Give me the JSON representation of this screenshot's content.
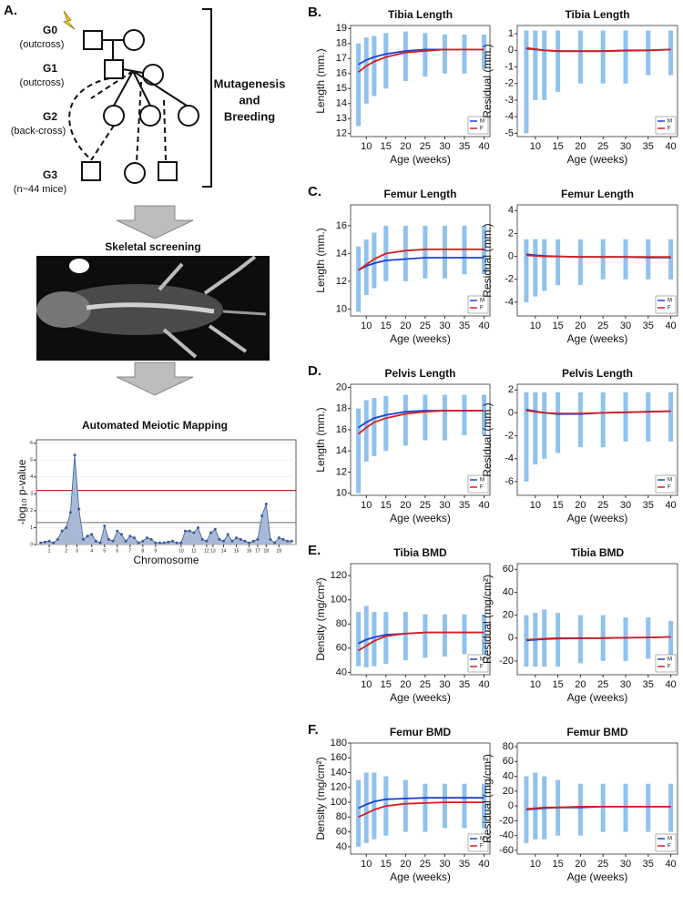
{
  "panel_a": {
    "label": "A.",
    "generations": [
      {
        "id": "G0",
        "note": "(outcross)"
      },
      {
        "id": "G1",
        "note": "(outcross)"
      },
      {
        "id": "G2",
        "note": "(back-cross)"
      },
      {
        "id": "G3",
        "note": "(n~44 mice)"
      }
    ],
    "bracket_label": [
      "Mutagenesis",
      "and",
      "Breeding"
    ],
    "step_1": "Skeletal screening"
  },
  "panel_labels": [
    "B.",
    "C.",
    "D.",
    "E.",
    "F."
  ],
  "chart_data": [
    {
      "type": "area",
      "title": "Automated Meiotic Mapping",
      "xlabel": "Chromosome",
      "ylabel": "-log₁₀ p-value",
      "color": "#3b5b9a",
      "fill": "#a9b8d4",
      "x": [
        1,
        2,
        3,
        4,
        5,
        6,
        7,
        8,
        9,
        10,
        11,
        12,
        13,
        14,
        15,
        16,
        17,
        18,
        19,
        20,
        21,
        22,
        23,
        24,
        25,
        26,
        27,
        28,
        29,
        30,
        31,
        32,
        33,
        34,
        35,
        36,
        37,
        38,
        39,
        40,
        41,
        42,
        43,
        44,
        45,
        46,
        47,
        48,
        49,
        50,
        51,
        52,
        53,
        54,
        55,
        56,
        57,
        58,
        59,
        60
      ],
      "values": [
        0.1,
        0.15,
        0.2,
        0.1,
        0.3,
        0.8,
        1.0,
        1.9,
        5.3,
        2.1,
        0.3,
        0.5,
        0.6,
        0.2,
        0.1,
        1.1,
        0.3,
        0.2,
        0.8,
        0.6,
        0.2,
        0.5,
        0.4,
        0.1,
        0.2,
        0.4,
        0.3,
        0.1,
        0.1,
        0.1,
        0.15,
        0.2,
        0.1,
        0.1,
        0.8,
        0.8,
        0.7,
        1.0,
        0.3,
        0.2,
        0.7,
        0.9,
        0.3,
        0.2,
        0.6,
        0.2,
        0.4,
        0.3,
        0.2,
        0.1,
        0.2,
        0.3,
        1.7,
        2.4,
        0.3,
        0.1,
        0.4,
        0.3,
        0.2,
        0.2
      ],
      "thresholds": [
        {
          "value": 3.2,
          "color": "#c62828"
        },
        {
          "value": 1.3,
          "color": "#888888"
        }
      ],
      "xlim": [
        0,
        61
      ],
      "ylim": [
        0,
        6.2
      ],
      "yticks": [
        0,
        1,
        2,
        3,
        4,
        5,
        6
      ],
      "xticks": [
        {
          "value": 3,
          "label": "1"
        },
        {
          "value": 7,
          "label": "2"
        },
        {
          "value": 9.5,
          "label": "3"
        },
        {
          "value": 13,
          "label": "4"
        },
        {
          "value": 16,
          "label": "5"
        },
        {
          "value": 19,
          "label": "6"
        },
        {
          "value": 22,
          "label": "7"
        },
        {
          "value": 25,
          "label": "8"
        },
        {
          "value": 28,
          "label": "9"
        },
        {
          "value": 34,
          "label": "10"
        },
        {
          "value": 37,
          "label": "11"
        },
        {
          "value": 40,
          "label": "12"
        },
        {
          "value": 41.5,
          "label": "13"
        },
        {
          "value": 44,
          "label": "14"
        },
        {
          "value": 47,
          "label": "15"
        },
        {
          "value": 50,
          "label": "16"
        },
        {
          "value": 52,
          "label": "17"
        },
        {
          "value": 54,
          "label": "18"
        },
        {
          "value": 57,
          "label": "19"
        }
      ]
    },
    {
      "type": "line",
      "title": "Tibia Length",
      "xlabel": "Age (weeks)",
      "ylabel": "Length (mm.)",
      "x": [
        8,
        10,
        12,
        15,
        20,
        25,
        30,
        35,
        40
      ],
      "series": [
        {
          "name": "M",
          "color": "#1f3fd6",
          "values": [
            16.6,
            16.9,
            17.1,
            17.3,
            17.5,
            17.6,
            17.6,
            17.6,
            17.6
          ]
        },
        {
          "name": "F",
          "color": "#d62020",
          "values": [
            16.1,
            16.5,
            16.8,
            17.1,
            17.4,
            17.5,
            17.6,
            17.6,
            17.6
          ]
        }
      ],
      "spread": {
        "color": "#6aaee8",
        "low": [
          12.5,
          14,
          14.5,
          15,
          15.5,
          15.8,
          16,
          16,
          16.3
        ],
        "high": [
          18,
          18.4,
          18.5,
          18.7,
          18.8,
          18.7,
          18.6,
          18.6,
          18.6
        ]
      },
      "xlim": [
        6,
        41.5
      ],
      "xticks": [
        10,
        15,
        20,
        25,
        30,
        35,
        40
      ],
      "ylim": [
        11.8,
        19.2
      ],
      "yticks": [
        12,
        13,
        14,
        15,
        16,
        17,
        18,
        19
      ],
      "legend": "lower right"
    },
    {
      "type": "line",
      "title": "Tibia Length",
      "xlabel": "Age (weeks)",
      "ylabel": "Residual (mm.)",
      "x": [
        8,
        10,
        12,
        15,
        20,
        25,
        30,
        35,
        40
      ],
      "series": [
        {
          "name": "M",
          "color": "#1f3fd6",
          "values": [
            0.1,
            0.05,
            0,
            -0.05,
            -0.05,
            -0.05,
            0,
            0,
            0.05
          ]
        },
        {
          "name": "F",
          "color": "#d62020",
          "values": [
            0.15,
            0.08,
            0,
            -0.05,
            -0.05,
            -0.05,
            -0.02,
            0,
            0.05
          ]
        }
      ],
      "spread": {
        "color": "#6aaee8",
        "low": [
          -5,
          -3,
          -3,
          -2.5,
          -2,
          -2,
          -2,
          -1.5,
          -1.5
        ],
        "high": [
          1.2,
          1.2,
          1.2,
          1.2,
          1.2,
          1.2,
          1.2,
          1.2,
          1.2
        ]
      },
      "xlim": [
        6,
        41.5
      ],
      "xticks": [
        10,
        15,
        20,
        25,
        30,
        35,
        40
      ],
      "ylim": [
        -5.2,
        1.5
      ],
      "yticks": [
        -5,
        -4,
        -3,
        -2,
        -1,
        0,
        1
      ],
      "legend": "lower right"
    },
    {
      "type": "line",
      "title": "Femur Length",
      "xlabel": "Age (weeks)",
      "ylabel": "Length (mm.)",
      "x": [
        8,
        10,
        12,
        15,
        20,
        25,
        30,
        35,
        40
      ],
      "series": [
        {
          "name": "M",
          "color": "#1f3fd6",
          "values": [
            12.8,
            13.1,
            13.3,
            13.5,
            13.6,
            13.7,
            13.7,
            13.7,
            13.7
          ]
        },
        {
          "name": "F",
          "color": "#d62020",
          "values": [
            12.8,
            13.2,
            13.6,
            14,
            14.2,
            14.3,
            14.3,
            14.3,
            14.3
          ]
        }
      ],
      "spread": {
        "color": "#6aaee8",
        "low": [
          9.8,
          11,
          11.5,
          12,
          12,
          12.2,
          12.2,
          12.5,
          12.5
        ],
        "high": [
          14.5,
          15,
          15.5,
          16,
          16,
          16,
          16,
          16,
          16
        ]
      },
      "xlim": [
        6,
        41.5
      ],
      "xticks": [
        10,
        15,
        20,
        25,
        30,
        35,
        40
      ],
      "ylim": [
        9.5,
        17.5
      ],
      "yticks": [
        10,
        12,
        14,
        16
      ],
      "legend": "lower right"
    },
    {
      "type": "line",
      "title": "Femur Length",
      "xlabel": "Age (weeks)",
      "ylabel": "Residual (mm.)",
      "x": [
        8,
        10,
        12,
        15,
        20,
        25,
        30,
        35,
        40
      ],
      "series": [
        {
          "name": "M",
          "color": "#1f3fd6",
          "values": [
            0.2,
            0.1,
            0.05,
            0,
            -0.05,
            -0.05,
            -0.05,
            -0.1,
            -0.1
          ]
        },
        {
          "name": "F",
          "color": "#d62020",
          "values": [
            0.1,
            0.05,
            0,
            0,
            -0.05,
            -0.05,
            -0.05,
            -0.05,
            -0.05
          ]
        }
      ],
      "spread": {
        "color": "#6aaee8",
        "low": [
          -4,
          -3.5,
          -3,
          -2.5,
          -2.5,
          -2,
          -2,
          -2,
          -2
        ],
        "high": [
          1.5,
          1.5,
          1.5,
          1.5,
          1.5,
          1.5,
          1.5,
          1.5,
          1.5
        ]
      },
      "xlim": [
        6,
        41.5
      ],
      "xticks": [
        10,
        15,
        20,
        25,
        30,
        35,
        40
      ],
      "ylim": [
        -5.2,
        4.5
      ],
      "yticks": [
        -4,
        -2,
        0,
        2,
        4
      ],
      "legend": "lower right"
    },
    {
      "type": "line",
      "title": "Pelvis Length",
      "xlabel": "Age (weeks)",
      "ylabel": "Length (mm.)",
      "x": [
        8,
        10,
        12,
        15,
        20,
        25,
        30,
        35,
        40
      ],
      "series": [
        {
          "name": "M",
          "color": "#1f3fd6",
          "values": [
            16.2,
            16.7,
            17.1,
            17.4,
            17.7,
            17.8,
            17.8,
            17.8,
            17.8
          ]
        },
        {
          "name": "F",
          "color": "#d62020",
          "values": [
            15.6,
            16.2,
            16.7,
            17.1,
            17.5,
            17.7,
            17.8,
            17.8,
            17.8
          ]
        }
      ],
      "spread": {
        "color": "#6aaee8",
        "low": [
          10,
          13,
          13.5,
          14,
          14.5,
          15,
          15,
          15.5,
          15.5
        ],
        "high": [
          18,
          18.8,
          19,
          19.2,
          19.3,
          19.3,
          19.3,
          19.3,
          19.3
        ]
      },
      "xlim": [
        6,
        41.5
      ],
      "xticks": [
        10,
        15,
        20,
        25,
        30,
        35,
        40
      ],
      "ylim": [
        9.8,
        20.3
      ],
      "yticks": [
        10,
        12,
        14,
        16,
        18,
        20
      ],
      "legend": "lower right"
    },
    {
      "type": "line",
      "title": "Pelvis Length",
      "xlabel": "Age (weeks)",
      "ylabel": "Residual (mm.)",
      "x": [
        8,
        10,
        12,
        15,
        20,
        25,
        30,
        35,
        40
      ],
      "series": [
        {
          "name": "M",
          "color": "#1f3fd6",
          "values": [
            0.3,
            0.15,
            0,
            -0.1,
            -0.1,
            0,
            0.05,
            0.1,
            0.15
          ]
        },
        {
          "name": "F",
          "color": "#d62020",
          "values": [
            0.2,
            0.1,
            0,
            -0.05,
            -0.05,
            0,
            0.05,
            0.1,
            0.15
          ]
        }
      ],
      "spread": {
        "color": "#6aaee8",
        "low": [
          -6,
          -4.5,
          -4,
          -3.5,
          -3,
          -3,
          -2.5,
          -2.5,
          -2.5
        ],
        "high": [
          1.8,
          1.8,
          1.8,
          1.8,
          1.8,
          1.8,
          1.8,
          1.8,
          1.8
        ]
      },
      "xlim": [
        6,
        41.5
      ],
      "xticks": [
        10,
        15,
        20,
        25,
        30,
        35,
        40
      ],
      "ylim": [
        -7.2,
        2.5
      ],
      "yticks": [
        -6,
        -4,
        -2,
        0,
        2
      ],
      "legend": "lower right"
    },
    {
      "type": "line",
      "title": "Tibia BMD",
      "xlabel": "Age (weeks)",
      "ylabel": "Density (mg/cm²)",
      "x": [
        8,
        10,
        12,
        15,
        20,
        25,
        30,
        35,
        40
      ],
      "series": [
        {
          "name": "M",
          "color": "#1f3fd6",
          "values": [
            64,
            67,
            69,
            71,
            72,
            73,
            73,
            73,
            73
          ]
        },
        {
          "name": "F",
          "color": "#d62020",
          "values": [
            58,
            62,
            66,
            70,
            72,
            73,
            73,
            73,
            73
          ]
        }
      ],
      "spread": {
        "color": "#6aaee8",
        "low": [
          45,
          44,
          45,
          47,
          50,
          52,
          53,
          55,
          55
        ],
        "high": [
          90,
          95,
          90,
          90,
          90,
          88,
          88,
          88,
          88
        ]
      },
      "xlim": [
        6,
        41.5
      ],
      "xticks": [
        10,
        15,
        20,
        25,
        30,
        35,
        40
      ],
      "ylim": [
        38,
        130
      ],
      "yticks": [
        40,
        60,
        80,
        100,
        120
      ],
      "legend": "lower right"
    },
    {
      "type": "line",
      "title": "Tibia BMD",
      "xlabel": "Age (weeks)",
      "ylabel": "Residual (mg/cm²)",
      "x": [
        8,
        10,
        12,
        15,
        20,
        25,
        30,
        35,
        40
      ],
      "series": [
        {
          "name": "M",
          "color": "#1f3fd6",
          "values": [
            -2,
            -1.5,
            -1,
            -0.5,
            -0.3,
            0,
            0.3,
            0.5,
            1
          ]
        },
        {
          "name": "F",
          "color": "#d62020",
          "values": [
            -1.5,
            -1,
            -0.5,
            0,
            0,
            0,
            0.3,
            0.5,
            1
          ]
        }
      ],
      "spread": {
        "color": "#6aaee8",
        "low": [
          -25,
          -25,
          -25,
          -25,
          -22,
          -20,
          -20,
          -18,
          -18
        ],
        "high": [
          20,
          22,
          25,
          22,
          20,
          20,
          18,
          18,
          15
        ]
      },
      "xlim": [
        6,
        41.5
      ],
      "xticks": [
        10,
        15,
        20,
        25,
        30,
        35,
        40
      ],
      "ylim": [
        -32,
        65
      ],
      "yticks": [
        -20,
        0,
        20,
        40,
        60
      ],
      "legend": "lower right"
    },
    {
      "type": "line",
      "title": "Femur BMD",
      "xlabel": "Age (weeks)",
      "ylabel": "Density (mg/cm²)",
      "x": [
        8,
        10,
        12,
        15,
        20,
        25,
        30,
        35,
        40
      ],
      "series": [
        {
          "name": "M",
          "color": "#1f3fd6",
          "values": [
            92,
            97,
            101,
            104,
            105,
            106,
            106,
            106,
            106
          ]
        },
        {
          "name": "F",
          "color": "#d62020",
          "values": [
            80,
            85,
            90,
            95,
            98,
            99,
            100,
            100,
            100
          ]
        }
      ],
      "spread": {
        "color": "#6aaee8",
        "low": [
          40,
          45,
          50,
          55,
          60,
          60,
          65,
          65,
          65
        ],
        "high": [
          130,
          140,
          140,
          135,
          130,
          125,
          125,
          125,
          125
        ]
      },
      "xlim": [
        6,
        41.5
      ],
      "xticks": [
        10,
        15,
        20,
        25,
        30,
        35,
        40
      ],
      "ylim": [
        30,
        180
      ],
      "yticks": [
        40,
        60,
        80,
        100,
        120,
        140,
        160,
        180
      ],
      "legend": "lower right"
    },
    {
      "type": "line",
      "title": "Femur BMD",
      "xlabel": "Age (weeks)",
      "ylabel": "Residual (mg/cm²)",
      "x": [
        8,
        10,
        12,
        15,
        20,
        25,
        30,
        35,
        40
      ],
      "series": [
        {
          "name": "M",
          "color": "#1f3fd6",
          "values": [
            -5,
            -4,
            -3,
            -2,
            -2,
            -1,
            -1,
            -1,
            -1
          ]
        },
        {
          "name": "F",
          "color": "#d62020",
          "values": [
            -4,
            -3,
            -2,
            -2,
            -1,
            -1,
            -1,
            -1,
            -1
          ]
        }
      ],
      "spread": {
        "color": "#6aaee8",
        "low": [
          -50,
          -45,
          -45,
          -40,
          -40,
          -35,
          -35,
          -35,
          -35
        ],
        "high": [
          40,
          45,
          40,
          35,
          30,
          30,
          30,
          30,
          30
        ]
      },
      "xlim": [
        6,
        41.5
      ],
      "xticks": [
        10,
        15,
        20,
        25,
        30,
        35,
        40
      ],
      "ylim": [
        -65,
        85
      ],
      "yticks": [
        -60,
        -40,
        -20,
        0,
        20,
        40,
        60,
        80
      ],
      "legend": "lower right"
    }
  ]
}
